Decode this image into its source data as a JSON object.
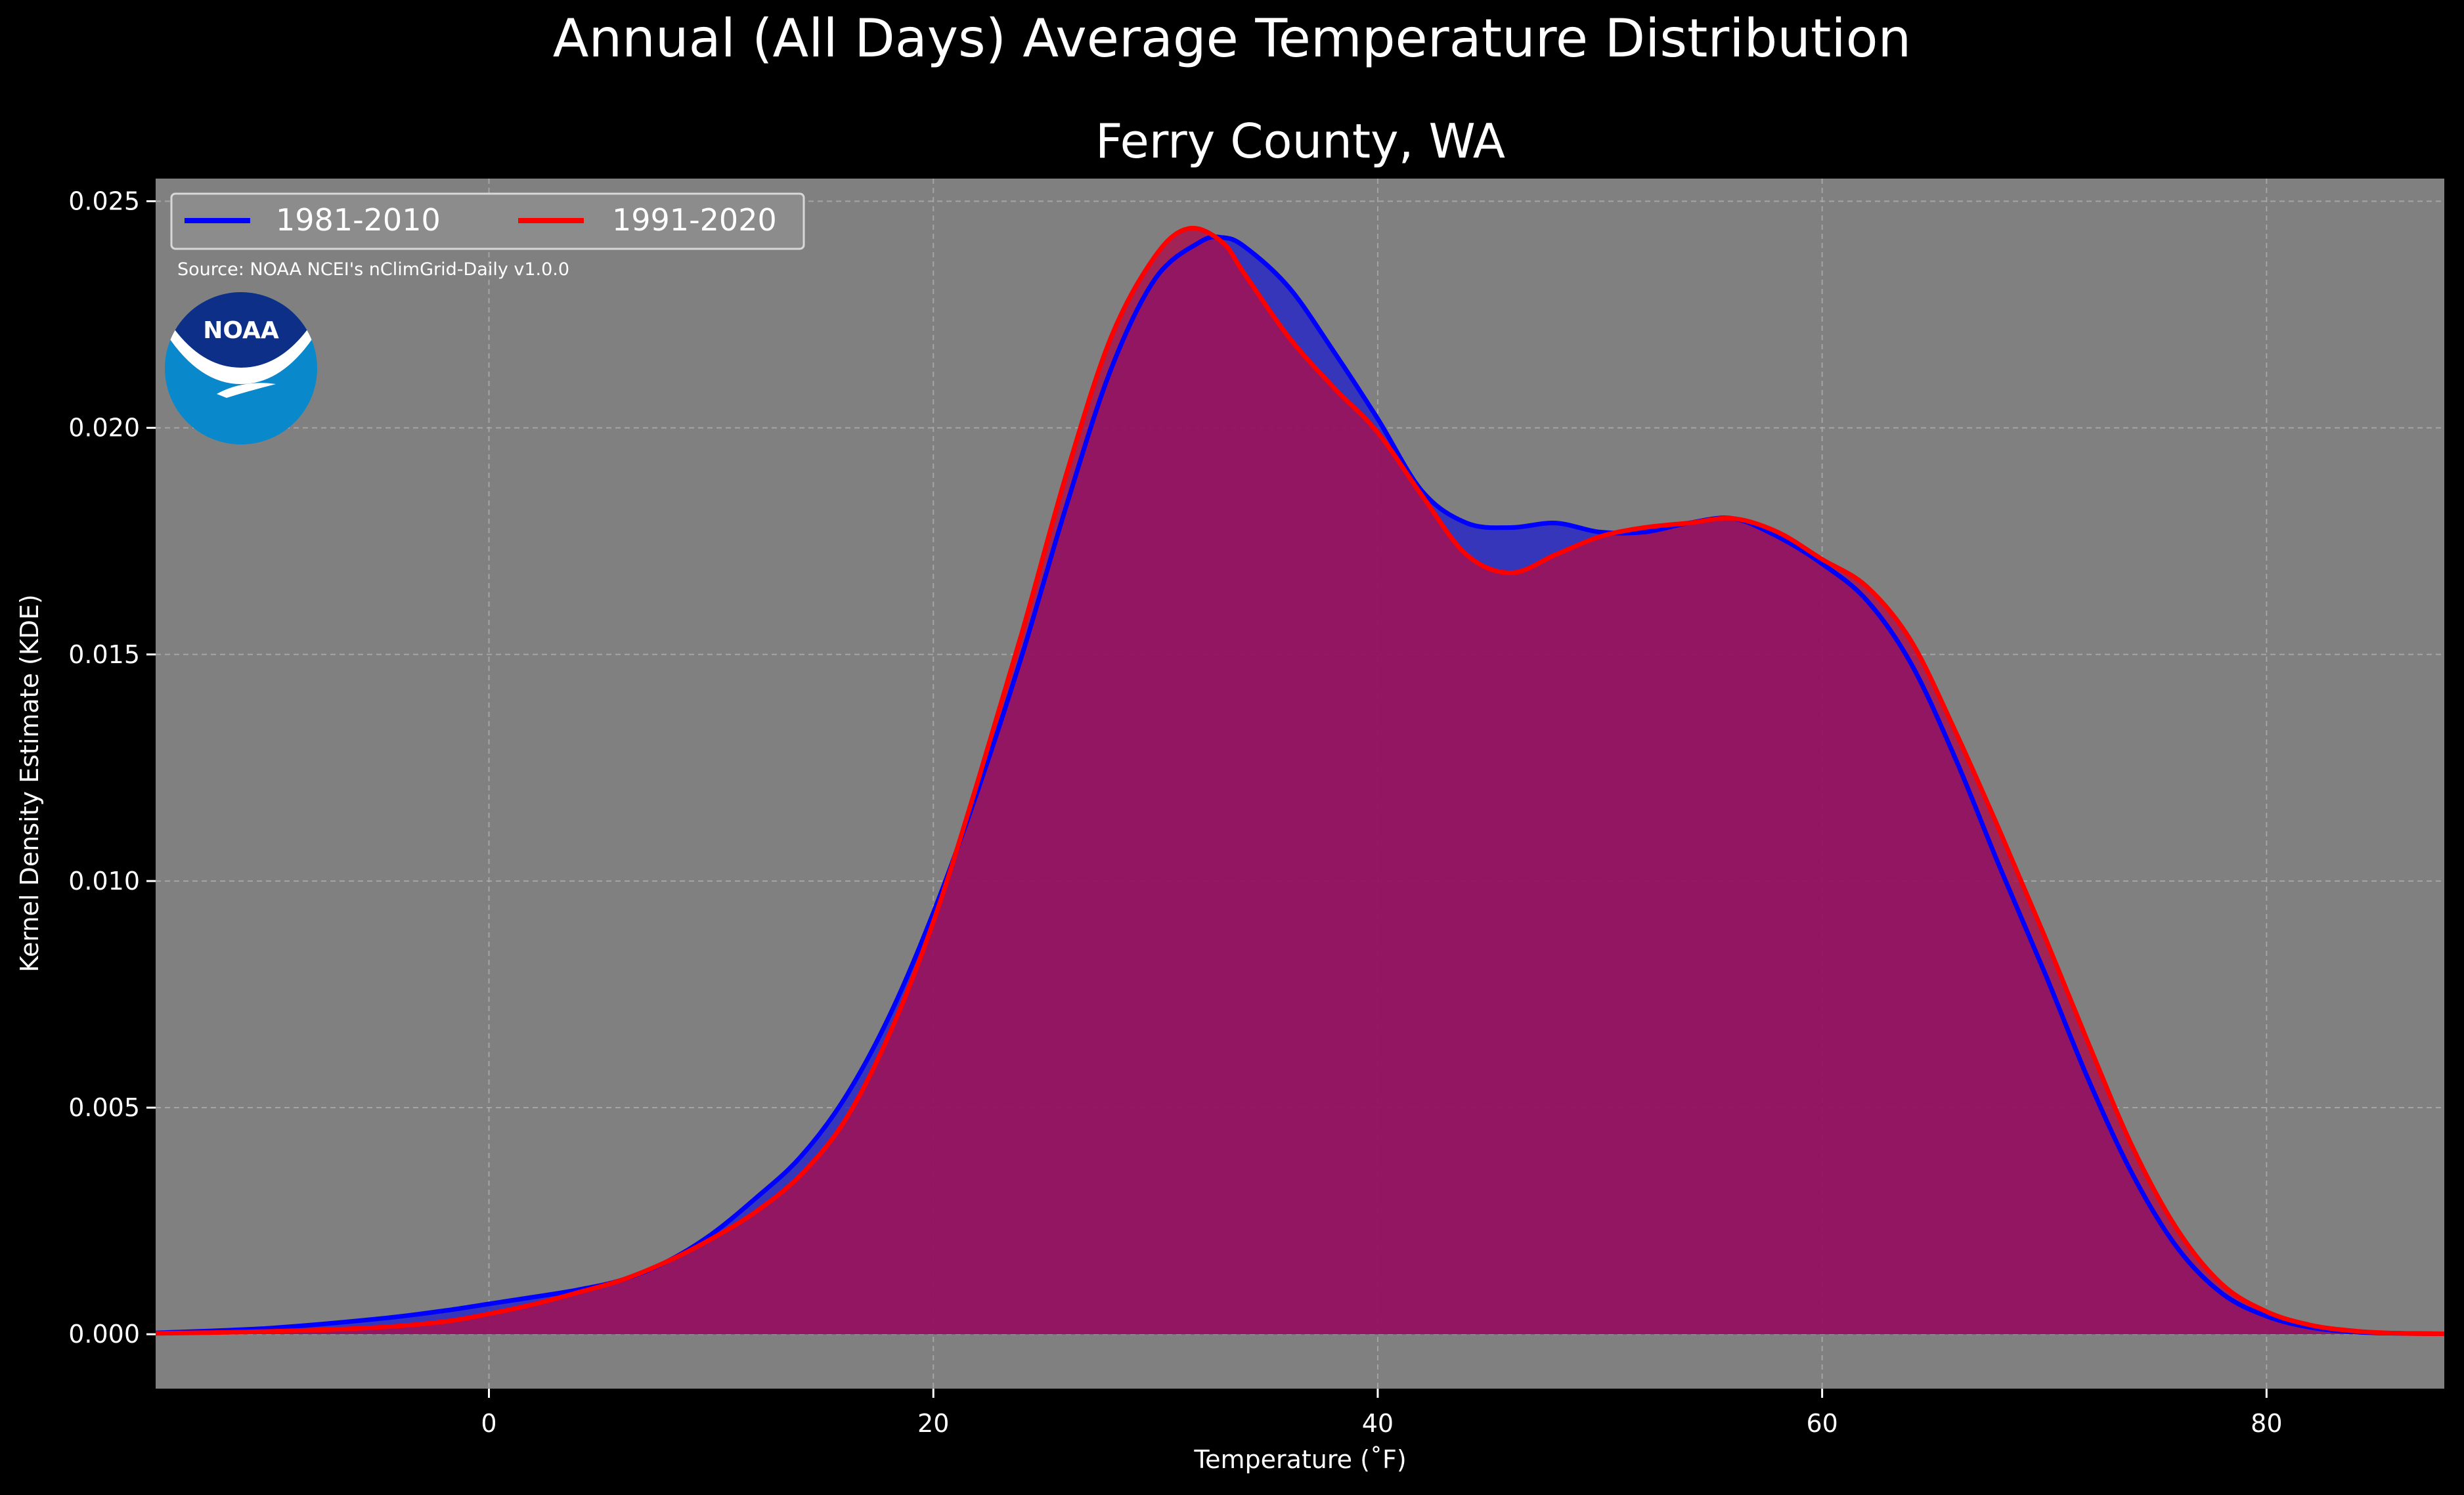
{
  "figure": {
    "suptitle": "Annual (All Days) Average Temperature Distribution",
    "title": "Ferry County, WA",
    "source_note": "Source: NOAA NCEI's nClimGrid-Daily v1.0.0",
    "logo_text": "NOAA"
  },
  "colors": {
    "figure_background": "#000000",
    "plot_background": "#808080",
    "grid": "#b4b4b4",
    "text": "#ffffff",
    "series_1981_2010": "#0000ff",
    "series_1991_2020": "#ff0000",
    "logo_outer": "#0a88cc",
    "logo_inner": "#0d2f87"
  },
  "chart_data": {
    "type": "area",
    "title": "Ferry County, WA",
    "xlabel": "Temperature ($^\\circ$F)",
    "xlabel_display": "Temperature (˚F)",
    "ylabel": "Kernel Density Estimate (KDE)",
    "xlim": [
      -15,
      88
    ],
    "ylim": [
      -0.0012,
      0.0255
    ],
    "x_ticks": [
      0,
      20,
      40,
      60,
      80
    ],
    "x_tick_labels": [
      "0",
      "20",
      "40",
      "60",
      "80"
    ],
    "y_ticks": [
      0.0,
      0.005,
      0.01,
      0.015,
      0.02,
      0.025
    ],
    "y_tick_labels": [
      "0.000",
      "0.005",
      "0.010",
      "0.015",
      "0.020",
      "0.025"
    ],
    "grid": true,
    "legend_position": "top-left",
    "series": [
      {
        "name": "1981-2010",
        "color": "#0000ff",
        "fill_color": "#1e1ecf",
        "x": [
          -15,
          -10,
          -5,
          -2,
          0,
          2,
          4,
          6,
          8,
          10,
          12,
          14,
          16,
          18,
          20,
          22,
          24,
          26,
          28,
          30,
          32,
          33,
          34,
          36,
          38,
          40,
          42,
          44,
          46,
          48,
          50,
          52,
          54,
          56,
          58,
          60,
          62,
          64,
          66,
          68,
          70,
          72,
          74,
          76,
          78,
          80,
          82,
          84,
          86,
          88
        ],
        "y": [
          3e-05,
          0.00013,
          0.00034,
          0.00052,
          0.00067,
          0.00082,
          0.00098,
          0.0012,
          0.0016,
          0.0022,
          0.003,
          0.0039,
          0.0052,
          0.007,
          0.0093,
          0.012,
          0.015,
          0.0183,
          0.0213,
          0.0233,
          0.0241,
          0.0242,
          0.024,
          0.0231,
          0.0217,
          0.0202,
          0.0186,
          0.0179,
          0.0178,
          0.0179,
          0.0177,
          0.0177,
          0.0179,
          0.018,
          0.0176,
          0.017,
          0.0162,
          0.0148,
          0.0127,
          0.0103,
          0.008,
          0.0056,
          0.0035,
          0.0019,
          0.0009,
          0.0004,
          0.00015,
          5e-05,
          2e-05,
          1e-05
        ]
      },
      {
        "name": "1991-2020",
        "color": "#ff0000",
        "fill_color": "#a8104e",
        "x": [
          -15,
          -10,
          -5,
          -2,
          0,
          2,
          4,
          6,
          8,
          10,
          12,
          14,
          16,
          18,
          20,
          22,
          24,
          26,
          28,
          30,
          31.5,
          33,
          34,
          36,
          38,
          40,
          42,
          44,
          46,
          48,
          50,
          52,
          54,
          56,
          58,
          60,
          62,
          64,
          66,
          68,
          70,
          72,
          74,
          76,
          78,
          80,
          82,
          84,
          86,
          88
        ],
        "y": [
          2e-05,
          6e-05,
          0.00015,
          0.00028,
          0.00045,
          0.00066,
          0.00092,
          0.0012,
          0.0016,
          0.0021,
          0.0027,
          0.0035,
          0.0047,
          0.0066,
          0.0091,
          0.0122,
          0.0155,
          0.019,
          0.022,
          0.0238,
          0.0244,
          0.0241,
          0.0234,
          0.022,
          0.0209,
          0.0199,
          0.0185,
          0.0172,
          0.0168,
          0.0172,
          0.0176,
          0.0178,
          0.0179,
          0.018,
          0.0177,
          0.0171,
          0.0165,
          0.0153,
          0.0133,
          0.0111,
          0.0088,
          0.0064,
          0.0041,
          0.0023,
          0.0011,
          0.0005,
          0.0002,
          7e-05,
          2e-05,
          1e-05
        ]
      }
    ]
  }
}
